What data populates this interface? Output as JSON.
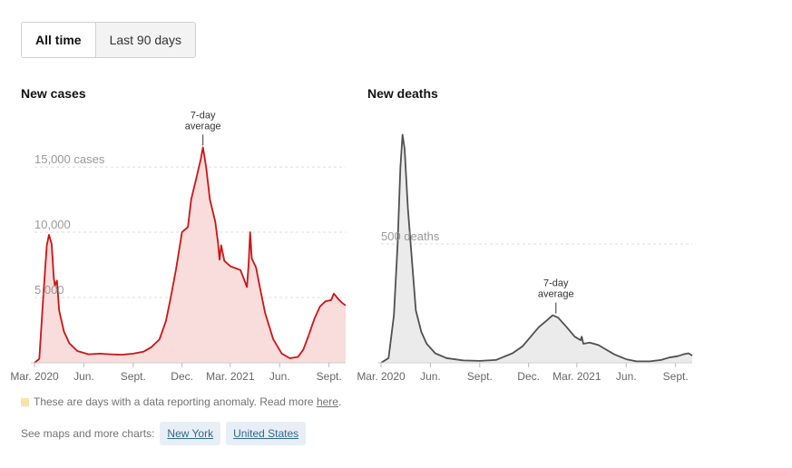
{
  "toggle": {
    "all_time": "All time",
    "last_90_days": "Last 90 days"
  },
  "note": {
    "text": "These are days with a data reporting anomaly. Read more",
    "link": "here",
    "end": ".",
    "swatch_color": "#f6e3a6"
  },
  "links": {
    "label": "See maps and more charts:",
    "new_york": "New York",
    "united_states": "United States"
  },
  "colors": {
    "cases_line": "#cc1414",
    "cases_fill": "#f9dcdc",
    "deaths_line": "#505050",
    "deaths_fill": "#ebebeb",
    "grid": "#dddddd",
    "label": "#999999"
  },
  "chart_data": [
    {
      "type": "area",
      "title": "New cases",
      "annotation": [
        "7-day",
        "average"
      ],
      "annotation_x": "2021-01-09",
      "y_ticks": [
        {
          "value": 5000,
          "label": "5,000"
        },
        {
          "value": 10000,
          "label": "10,000"
        },
        {
          "value": 15000,
          "label": "15,000 cases"
        }
      ],
      "ylim": [
        0,
        18200
      ],
      "xlim": [
        "2020-03-01",
        "2021-10-02"
      ],
      "x_ticks": [
        {
          "date": "2020-03-01",
          "label": "Mar. 2020"
        },
        {
          "date": "2020-06-01",
          "label": "Jun."
        },
        {
          "date": "2020-09-01",
          "label": "Sept."
        },
        {
          "date": "2020-12-01",
          "label": "Dec."
        },
        {
          "date": "2021-03-01",
          "label": "Mar. 2021"
        },
        {
          "date": "2021-06-01",
          "label": "Jun."
        },
        {
          "date": "2021-09-01",
          "label": "Sept."
        }
      ],
      "series": [
        {
          "points": [
            [
              "2020-03-01",
              0
            ],
            [
              "2020-03-10",
              300
            ],
            [
              "2020-03-18",
              5500
            ],
            [
              "2020-03-24",
              9000
            ],
            [
              "2020-03-28",
              9800
            ],
            [
              "2020-04-02",
              9100
            ],
            [
              "2020-04-06",
              6500
            ],
            [
              "2020-04-08",
              5900
            ],
            [
              "2020-04-12",
              6300
            ],
            [
              "2020-04-16",
              4000
            ],
            [
              "2020-04-25",
              2400
            ],
            [
              "2020-05-05",
              1500
            ],
            [
              "2020-05-20",
              900
            ],
            [
              "2020-06-10",
              650
            ],
            [
              "2020-07-01",
              700
            ],
            [
              "2020-07-20",
              650
            ],
            [
              "2020-08-10",
              620
            ],
            [
              "2020-09-01",
              700
            ],
            [
              "2020-09-20",
              850
            ],
            [
              "2020-10-05",
              1200
            ],
            [
              "2020-10-20",
              1800
            ],
            [
              "2020-11-01",
              3200
            ],
            [
              "2020-11-10",
              5000
            ],
            [
              "2020-11-20",
              7200
            ],
            [
              "2020-12-01",
              10000
            ],
            [
              "2020-12-12",
              10400
            ],
            [
              "2020-12-18",
              12500
            ],
            [
              "2020-12-28",
              14200
            ],
            [
              "2021-01-05",
              15600
            ],
            [
              "2021-01-09",
              16500
            ],
            [
              "2021-01-15",
              15000
            ],
            [
              "2021-01-22",
              12500
            ],
            [
              "2021-02-01",
              10800
            ],
            [
              "2021-02-06",
              9200
            ],
            [
              "2021-02-09",
              7900
            ],
            [
              "2021-02-12",
              9000
            ],
            [
              "2021-02-18",
              7800
            ],
            [
              "2021-03-01",
              7400
            ],
            [
              "2021-03-20",
              7100
            ],
            [
              "2021-04-01",
              5800
            ],
            [
              "2021-04-04",
              7500
            ],
            [
              "2021-04-07",
              10000
            ],
            [
              "2021-04-10",
              8000
            ],
            [
              "2021-04-18",
              7300
            ],
            [
              "2021-04-25",
              5800
            ],
            [
              "2021-05-05",
              3800
            ],
            [
              "2021-05-20",
              1800
            ],
            [
              "2021-06-05",
              700
            ],
            [
              "2021-06-20",
              350
            ],
            [
              "2021-07-05",
              450
            ],
            [
              "2021-07-15",
              1000
            ],
            [
              "2021-07-25",
              2100
            ],
            [
              "2021-08-05",
              3400
            ],
            [
              "2021-08-15",
              4300
            ],
            [
              "2021-08-25",
              4700
            ],
            [
              "2021-09-05",
              4800
            ],
            [
              "2021-09-10",
              5300
            ],
            [
              "2021-09-18",
              4900
            ],
            [
              "2021-09-25",
              4600
            ],
            [
              "2021-10-02",
              4400
            ]
          ]
        }
      ]
    },
    {
      "type": "area",
      "title": "New deaths",
      "annotation": [
        "7-day",
        "average"
      ],
      "annotation_x": "2021-01-21",
      "y_ticks": [
        {
          "value": 500,
          "label": "500 deaths"
        }
      ],
      "ylim": [
        0,
        1000
      ],
      "xlim": [
        "2020-03-01",
        "2021-10-02"
      ],
      "x_ticks": [
        {
          "date": "2020-03-01",
          "label": "Mar. 2020"
        },
        {
          "date": "2020-06-01",
          "label": "Jun."
        },
        {
          "date": "2020-09-01",
          "label": "Sept."
        },
        {
          "date": "2020-12-01",
          "label": "Dec."
        },
        {
          "date": "2021-03-01",
          "label": "Mar. 2021"
        },
        {
          "date": "2021-06-01",
          "label": "Jun."
        },
        {
          "date": "2021-09-01",
          "label": "Sept."
        }
      ],
      "series": [
        {
          "points": [
            [
              "2020-03-01",
              0
            ],
            [
              "2020-03-15",
              20
            ],
            [
              "2020-03-25",
              200
            ],
            [
              "2020-04-01",
              500
            ],
            [
              "2020-04-06",
              820
            ],
            [
              "2020-04-10",
              960
            ],
            [
              "2020-04-14",
              900
            ],
            [
              "2020-04-20",
              650
            ],
            [
              "2020-04-28",
              420
            ],
            [
              "2020-05-05",
              220
            ],
            [
              "2020-05-15",
              130
            ],
            [
              "2020-05-25",
              80
            ],
            [
              "2020-06-10",
              40
            ],
            [
              "2020-07-01",
              20
            ],
            [
              "2020-08-01",
              10
            ],
            [
              "2020-09-01",
              8
            ],
            [
              "2020-10-01",
              12
            ],
            [
              "2020-11-01",
              40
            ],
            [
              "2020-11-20",
              70
            ],
            [
              "2020-12-05",
              110
            ],
            [
              "2020-12-20",
              150
            ],
            [
              "2021-01-05",
              180
            ],
            [
              "2021-01-15",
              200
            ],
            [
              "2021-01-25",
              190
            ],
            [
              "2021-02-10",
              150
            ],
            [
              "2021-02-25",
              110
            ],
            [
              "2021-03-08",
              95
            ],
            [
              "2021-03-10",
              110
            ],
            [
              "2021-03-13",
              80
            ],
            [
              "2021-03-25",
              85
            ],
            [
              "2021-04-10",
              75
            ],
            [
              "2021-04-25",
              55
            ],
            [
              "2021-05-10",
              35
            ],
            [
              "2021-06-01",
              15
            ],
            [
              "2021-06-20",
              6
            ],
            [
              "2021-07-15",
              6
            ],
            [
              "2021-08-05",
              12
            ],
            [
              "2021-08-20",
              22
            ],
            [
              "2021-09-05",
              28
            ],
            [
              "2021-09-15",
              35
            ],
            [
              "2021-09-25",
              40
            ],
            [
              "2021-10-02",
              30
            ]
          ]
        }
      ]
    }
  ]
}
